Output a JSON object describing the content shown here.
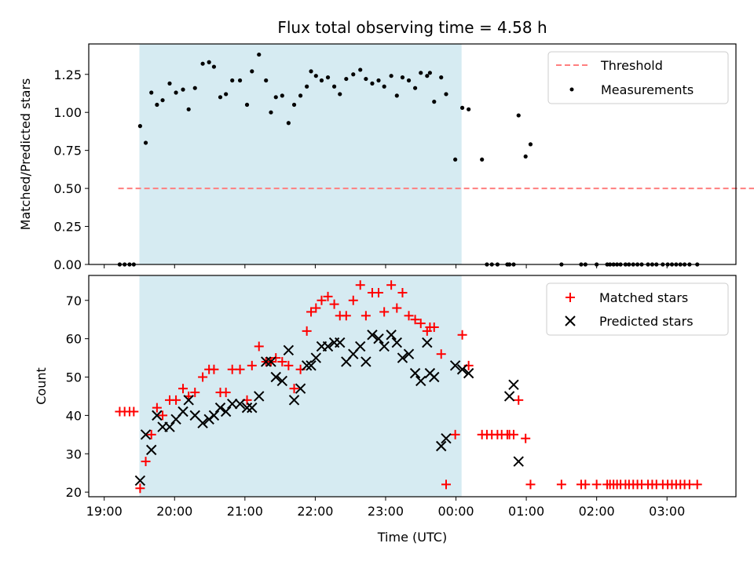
{
  "chart_data": [
    {
      "type": "scatter",
      "title": "Flux total observing time = 4.58 h",
      "xlabel": "",
      "ylabel": "Matched/Predicted stars",
      "xlim": [
        -0.22,
        8.98
      ],
      "ylim": [
        0.0,
        1.45
      ],
      "yticks": [
        0.0,
        0.25,
        0.5,
        0.75,
        1.0,
        1.25
      ],
      "ytick_labels": [
        "0.00",
        "0.25",
        "0.50",
        "0.75",
        "1.00",
        "1.25"
      ],
      "shaded_region": [
        0.5,
        5.08
      ],
      "threshold": {
        "name": "Threshold",
        "value": 0.5,
        "x_range": [
          0.2,
          9.5
        ],
        "color": "#ff7f7f"
      },
      "series": [
        {
          "name": "Measurements",
          "color": "#000000",
          "x": [
            0.22,
            0.29,
            0.36,
            0.42,
            0.51,
            0.59,
            0.67,
            0.75,
            0.83,
            0.93,
            1.02,
            1.12,
            1.2,
            1.29,
            1.4,
            1.49,
            1.56,
            1.65,
            1.73,
            1.82,
            1.93,
            2.03,
            2.1,
            2.2,
            2.3,
            2.37,
            2.44,
            2.53,
            2.62,
            2.7,
            2.79,
            2.88,
            2.94,
            3.01,
            3.09,
            3.18,
            3.27,
            3.35,
            3.44,
            3.54,
            3.64,
            3.72,
            3.81,
            3.9,
            3.98,
            4.08,
            4.16,
            4.24,
            4.33,
            4.42,
            4.5,
            4.59,
            4.63,
            4.69,
            4.79,
            4.86,
            4.99,
            5.09,
            5.18,
            5.37,
            5.44,
            5.51,
            5.59,
            5.73,
            5.76,
            5.82,
            5.89,
            5.99,
            6.06,
            6.5,
            6.78,
            6.84,
            7.0,
            7.15,
            7.19,
            7.24,
            7.29,
            7.34,
            7.41,
            7.46,
            7.52,
            7.58,
            7.64,
            7.73,
            7.79,
            7.85,
            7.94,
            8.01,
            8.07,
            8.13,
            8.19,
            8.25,
            8.32,
            8.43
          ],
          "y": [
            0.0,
            0.0,
            0.0,
            0.0,
            0.91,
            0.8,
            1.13,
            1.05,
            1.08,
            1.19,
            1.13,
            1.15,
            1.02,
            1.16,
            1.32,
            1.33,
            1.3,
            1.1,
            1.12,
            1.21,
            1.21,
            1.05,
            1.27,
            1.38,
            1.21,
            1.0,
            1.1,
            1.11,
            0.93,
            1.05,
            1.11,
            1.17,
            1.27,
            1.24,
            1.21,
            1.23,
            1.17,
            1.12,
            1.22,
            1.25,
            1.28,
            1.22,
            1.19,
            1.21,
            1.17,
            1.24,
            1.11,
            1.23,
            1.21,
            1.16,
            1.26,
            1.24,
            1.26,
            1.07,
            1.23,
            1.12,
            0.69,
            1.03,
            1.02,
            0.69,
            0.0,
            0.0,
            0.0,
            0.0,
            0.0,
            0.0,
            0.98,
            0.71,
            0.79,
            0.0,
            0.0,
            0.0,
            0.0,
            0.0,
            0.0,
            0.0,
            0.0,
            0.0,
            0.0,
            0.0,
            0.0,
            0.0,
            0.0,
            0.0,
            0.0,
            0.0,
            0.0,
            0.0,
            0.0,
            0.0,
            0.0,
            0.0,
            0.0,
            0.0
          ]
        }
      ]
    },
    {
      "type": "scatter",
      "title": "",
      "xlabel": "Time (UTC)",
      "ylabel": "Count",
      "xlim": [
        -0.22,
        8.98
      ],
      "ylim": [
        18.8,
        76.5
      ],
      "xticks": [
        0,
        1,
        2,
        3,
        4,
        5,
        6,
        7,
        8,
        9
      ],
      "xtick_labels": [
        "19:00",
        "20:00",
        "21:00",
        "22:00",
        "23:00",
        "00:00",
        "01:00",
        "02:00",
        "03:00"
      ],
      "yticks": [
        20,
        30,
        40,
        50,
        60,
        70
      ],
      "ytick_labels": [
        "20",
        "30",
        "40",
        "50",
        "60",
        "70"
      ],
      "shaded_region": [
        0.5,
        5.08
      ],
      "series": [
        {
          "name": "Matched stars",
          "marker": "+",
          "color": "#ff0000",
          "x": [
            0.22,
            0.29,
            0.36,
            0.42,
            0.51,
            0.59,
            0.67,
            0.75,
            0.83,
            0.93,
            1.02,
            1.12,
            1.2,
            1.29,
            1.4,
            1.49,
            1.56,
            1.65,
            1.73,
            1.82,
            1.93,
            2.03,
            2.1,
            2.2,
            2.3,
            2.37,
            2.44,
            2.53,
            2.62,
            2.7,
            2.79,
            2.88,
            2.94,
            3.01,
            3.09,
            3.18,
            3.27,
            3.35,
            3.44,
            3.54,
            3.64,
            3.72,
            3.81,
            3.9,
            3.98,
            4.08,
            4.16,
            4.24,
            4.33,
            4.42,
            4.5,
            4.59,
            4.63,
            4.69,
            4.79,
            4.86,
            4.99,
            5.09,
            5.18,
            5.37,
            5.44,
            5.51,
            5.59,
            5.65,
            5.73,
            5.76,
            5.82,
            5.89,
            5.99,
            6.06,
            6.5,
            6.78,
            6.84,
            7.0,
            7.15,
            7.19,
            7.24,
            7.29,
            7.34,
            7.41,
            7.46,
            7.52,
            7.58,
            7.64,
            7.73,
            7.79,
            7.85,
            7.94,
            8.01,
            8.07,
            8.13,
            8.19,
            8.25,
            8.32,
            8.43
          ],
          "y": [
            41,
            41,
            41,
            41,
            21,
            28,
            35,
            42,
            40,
            44,
            44,
            47,
            45,
            46,
            50,
            52,
            52,
            46,
            46,
            52,
            52,
            44,
            53,
            58,
            54,
            54,
            55,
            54,
            53,
            47,
            52,
            62,
            67,
            68,
            70,
            71,
            69,
            66,
            66,
            70,
            74,
            66,
            72,
            72,
            67,
            74,
            68,
            72,
            66,
            65,
            64,
            62,
            63,
            63,
            56,
            22,
            35,
            61,
            53,
            35,
            35,
            35,
            35,
            35,
            35,
            35,
            35,
            44,
            34,
            22,
            22,
            22,
            22,
            22,
            22,
            22,
            22,
            22,
            22,
            22,
            22,
            22,
            22,
            22,
            22,
            22,
            22,
            22,
            22,
            22,
            22,
            22,
            22,
            22,
            22
          ],
          "note": "bottom-right red markers at 22 extend to ~03:35"
        },
        {
          "name": "Predicted stars",
          "marker": "x",
          "color": "#000000",
          "x": [
            0.51,
            0.59,
            0.67,
            0.75,
            0.83,
            0.93,
            1.02,
            1.12,
            1.2,
            1.29,
            1.4,
            1.49,
            1.56,
            1.65,
            1.73,
            1.82,
            1.93,
            2.03,
            2.1,
            2.2,
            2.3,
            2.37,
            2.44,
            2.53,
            2.62,
            2.7,
            2.79,
            2.88,
            2.94,
            3.01,
            3.09,
            3.18,
            3.27,
            3.35,
            3.44,
            3.54,
            3.64,
            3.72,
            3.81,
            3.9,
            3.98,
            4.08,
            4.16,
            4.24,
            4.33,
            4.42,
            4.5,
            4.59,
            4.63,
            4.69,
            4.79,
            4.86,
            4.99,
            5.09,
            5.18,
            5.76,
            5.82,
            5.89
          ],
          "y": [
            23,
            35,
            31,
            40,
            37,
            37,
            39,
            41,
            44,
            40,
            38,
            39,
            40,
            42,
            41,
            43,
            43,
            42,
            42,
            45,
            54,
            54,
            50,
            49,
            57,
            44,
            47,
            53,
            53,
            55,
            58,
            58,
            59,
            59,
            54,
            56,
            58,
            54,
            61,
            60,
            58,
            61,
            59,
            55,
            56,
            51,
            49,
            59,
            51,
            50,
            32,
            34,
            53,
            52,
            51,
            45,
            48,
            28
          ]
        }
      ]
    }
  ],
  "legend_top": [
    {
      "label": "Threshold"
    },
    {
      "label": "Measurements"
    }
  ],
  "legend_bottom": [
    {
      "label": "Matched stars"
    },
    {
      "label": "Predicted stars"
    }
  ]
}
